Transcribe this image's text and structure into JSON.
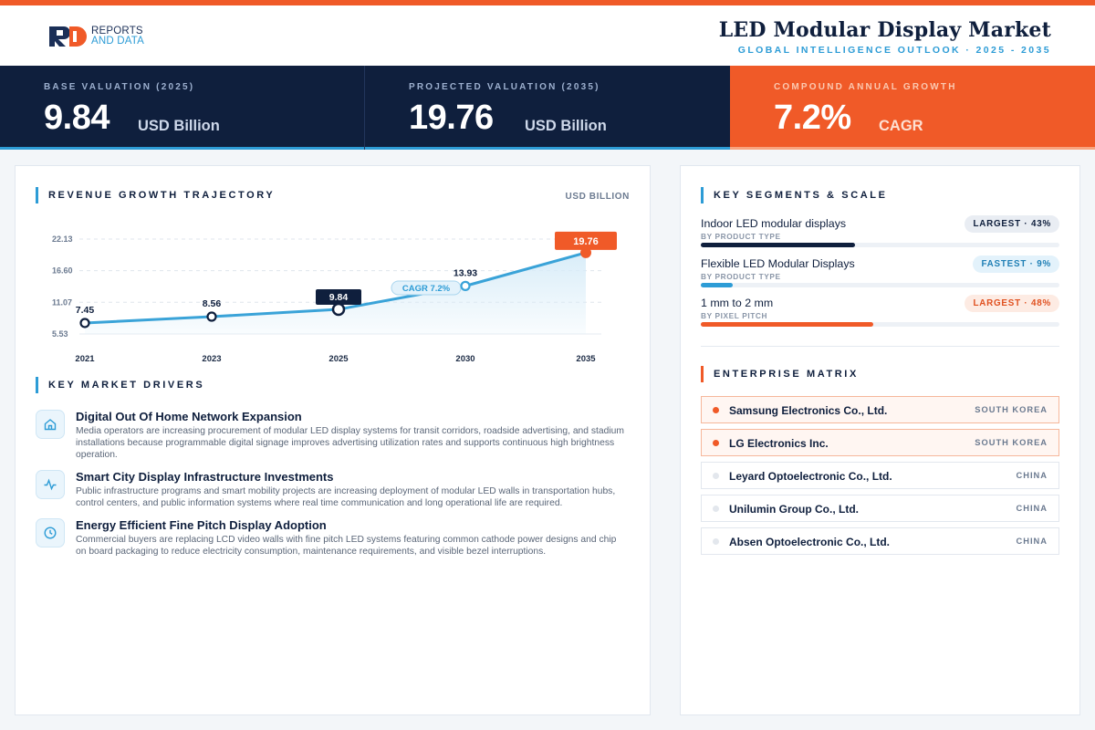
{
  "brand": {
    "line1": "REPORTS",
    "line2": "AND DATA",
    "mark": "RD"
  },
  "header": {
    "title": "LED Modular Display Market",
    "subtitle": "GLOBAL INTELLIGENCE OUTLOOK  ·  2025 - 2035"
  },
  "kpis": [
    {
      "label": "BASE VALUATION (2025)",
      "value": "9.84",
      "unit": "USD Billion"
    },
    {
      "label": "PROJECTED VALUATION (2035)",
      "value": "19.76",
      "unit": "USD Billion"
    },
    {
      "label": "COMPOUND ANNUAL GROWTH",
      "value": "7.2%",
      "unit": "CAGR"
    }
  ],
  "chart_section": {
    "title": "REVENUE GROWTH TRAJECTORY",
    "unit": "USD BILLION"
  },
  "chart_data": {
    "type": "area",
    "title": "REVENUE GROWTH TRAJECTORY",
    "ylabel": "USD BILLION",
    "categories": [
      "2021",
      "2023",
      "2025",
      "2030",
      "2035"
    ],
    "series": [
      {
        "values": [
          7.45,
          8.56,
          9.84,
          13.93,
          19.76
        ]
      }
    ],
    "data_labels": [
      "7.45",
      "8.56",
      "9.84",
      "13.93",
      "19.76"
    ],
    "yticks": [
      "5.53",
      "11.07",
      "16.60",
      "22.13"
    ],
    "ylim": [
      5.53,
      22.13
    ],
    "grid": true,
    "highlighted": {
      "2025": "base",
      "2035": "projected"
    },
    "annotation": "CAGR 7.2%",
    "colors": {
      "line": "#3aa3d8",
      "fill": "#d7ecf8",
      "base": "#0f1f3d",
      "projected": "#f05a28"
    }
  },
  "drivers_section": {
    "title": "KEY MARKET DRIVERS"
  },
  "drivers": [
    {
      "icon": "home-icon",
      "title": "Digital Out Of Home Network Expansion",
      "desc": "Media operators are increasing procurement of modular LED display systems for transit corridors, roadside advertising, and stadium installations because programmable digital signage improves advertising utilization rates and supports continuous high brightness operation."
    },
    {
      "icon": "pulse-icon",
      "title": "Smart City Display Infrastructure Investments",
      "desc": "Public infrastructure programs and smart mobility projects are increasing deployment of modular LED walls in transportation hubs, control centers, and public information systems where real time communication and long operational life are required."
    },
    {
      "icon": "clock-icon",
      "title": "Energy Efficient Fine Pitch Display Adoption",
      "desc": "Commercial buyers are replacing LCD video walls with fine pitch LED systems featuring common cathode power designs and chip on board packaging to reduce electricity consumption, maintenance requirements, and visible bezel interruptions."
    }
  ],
  "segments_section": {
    "title": "KEY SEGMENTS & SCALE"
  },
  "segments": [
    {
      "name": "Indoor LED modular displays",
      "sub": "BY PRODUCT TYPE",
      "badge": "LARGEST · 43%",
      "share": 43,
      "color": "#0f1f3d",
      "badge_bg": "#e9edf3",
      "badge_fg": "#0f1f3d"
    },
    {
      "name": "Flexible LED Modular Displays",
      "sub": "BY PRODUCT TYPE",
      "badge": "FASTEST · 9%",
      "share": 9,
      "color": "#2d9cd6",
      "badge_bg": "#e3f2fb",
      "badge_fg": "#1f7fb5"
    },
    {
      "name": "1 mm to 2 mm",
      "sub": "BY PIXEL PITCH",
      "badge": "LARGEST · 48%",
      "share": 48,
      "color": "#f05a28",
      "badge_bg": "#fdebe3",
      "badge_fg": "#e0501f"
    }
  ],
  "enterprise_section": {
    "title": "ENTERPRISE MATRIX"
  },
  "enterprises": [
    {
      "name": "Samsung Electronics Co., Ltd.",
      "country": "SOUTH KOREA",
      "highlight": true
    },
    {
      "name": "LG Electronics Inc.",
      "country": "SOUTH KOREA",
      "highlight": true
    },
    {
      "name": "Leyard Optoelectronic Co., Ltd.",
      "country": "CHINA",
      "highlight": false
    },
    {
      "name": "Unilumin Group Co., Ltd.",
      "country": "CHINA",
      "highlight": false
    },
    {
      "name": "Absen Optoelectronic Co., Ltd.",
      "country": "CHINA",
      "highlight": false
    }
  ]
}
